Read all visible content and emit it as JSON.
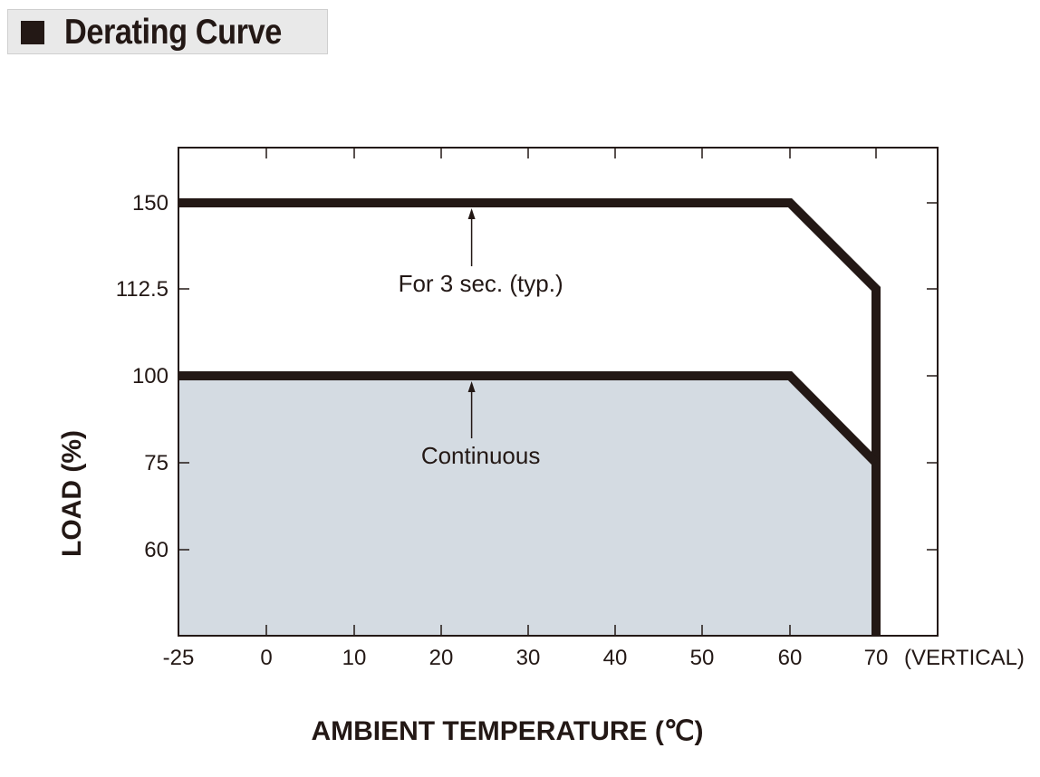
{
  "header": {
    "title": "Derating Curve"
  },
  "chart_data": {
    "type": "line",
    "xlabel": "AMBIENT TEMPERATURE (℃)",
    "ylabel": "LOAD (%)",
    "x_ticks": [
      "-25",
      "0",
      "10",
      "20",
      "30",
      "40",
      "50",
      "60",
      "70"
    ],
    "x_tick_values": [
      -25,
      0,
      10,
      20,
      30,
      40,
      50,
      60,
      70
    ],
    "x_suffix": "(VERTICAL)",
    "y_ticks": [
      "60",
      "75",
      "100",
      "112.5",
      "150"
    ],
    "y_tick_values": [
      60,
      75,
      100,
      112.5,
      150
    ],
    "series": [
      {
        "x": [
          -25,
          60,
          70,
          70
        ],
        "y": [
          150,
          150,
          112.5,
          45
        ]
      },
      {
        "x": [
          -25,
          60,
          70
        ],
        "y": [
          100,
          100,
          75
        ]
      }
    ],
    "annotations": [
      {
        "text": "For 3 sec. (typ.)",
        "arrow_to": {
          "x": 23.5,
          "y": 150
        }
      },
      {
        "text": "Continuous",
        "arrow_to": {
          "x": 23.5,
          "y": 100
        }
      }
    ],
    "shaded_region": {
      "x": [
        -25,
        60,
        70,
        70,
        -25
      ],
      "y": [
        100,
        100,
        75,
        45,
        45
      ]
    },
    "colors": {
      "line": "#231815",
      "fill": "#d4dbe2"
    },
    "grid": false
  }
}
